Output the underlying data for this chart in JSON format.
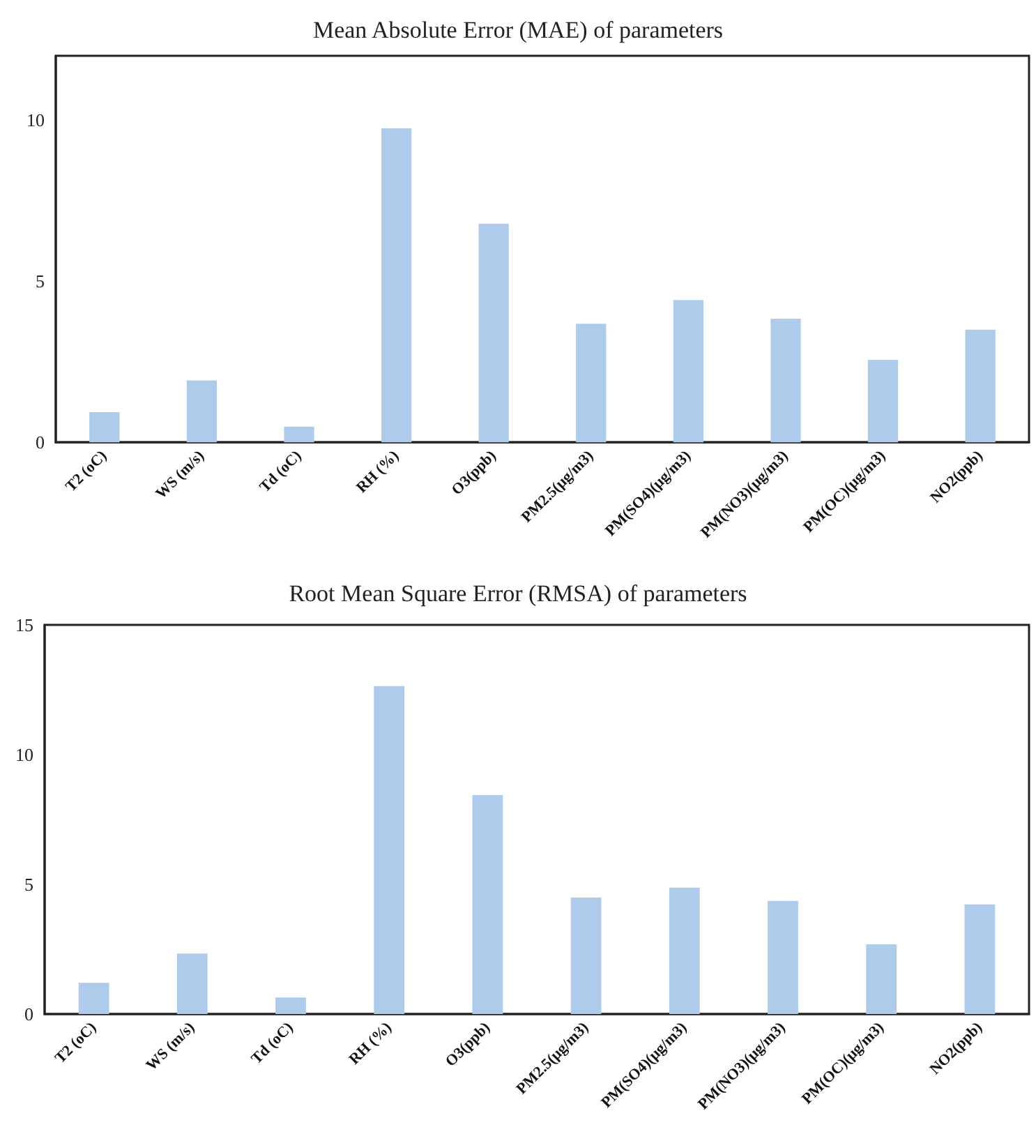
{
  "chart_data": [
    {
      "type": "bar",
      "title": "Mean Absolute Error (MAE) of parameters",
      "categories": [
        "T2 (oC)",
        "WS (m/s)",
        "Td (oC)",
        "RH (%)",
        "O3(ppb)",
        "PM2.5(μg/m3)",
        "PM(SO4)(μg/m3)",
        "PM(NO3)(μg/m3)",
        "PM(OC)(μg/m3)",
        "NO2(ppb)"
      ],
      "values": [
        0.94,
        1.92,
        0.49,
        9.75,
        6.79,
        3.68,
        4.42,
        3.84,
        2.56,
        3.5
      ],
      "color": "#aecbeb",
      "ylim": [
        0,
        12
      ],
      "yticks": [
        0,
        5,
        10
      ]
    },
    {
      "type": "bar",
      "title": "Root Mean Square Error (RMSA) of parameters",
      "categories": [
        "T2 (oC)",
        "WS (m/s)",
        "Td (oC)",
        "RH (%)",
        "O3(ppb)",
        "PM2.5(μg/m3)",
        "PM(SO4)(μg/m3)",
        "PM(NO3)(μg/m3)",
        "PM(OC)(μg/m3)",
        "NO2(ppb)"
      ],
      "values": [
        1.2,
        2.33,
        0.64,
        12.64,
        8.44,
        4.49,
        4.87,
        4.36,
        2.69,
        4.23
      ],
      "color": "#aecbeb",
      "ylim": [
        0,
        15
      ],
      "yticks": [
        0,
        5,
        10,
        15
      ]
    }
  ]
}
